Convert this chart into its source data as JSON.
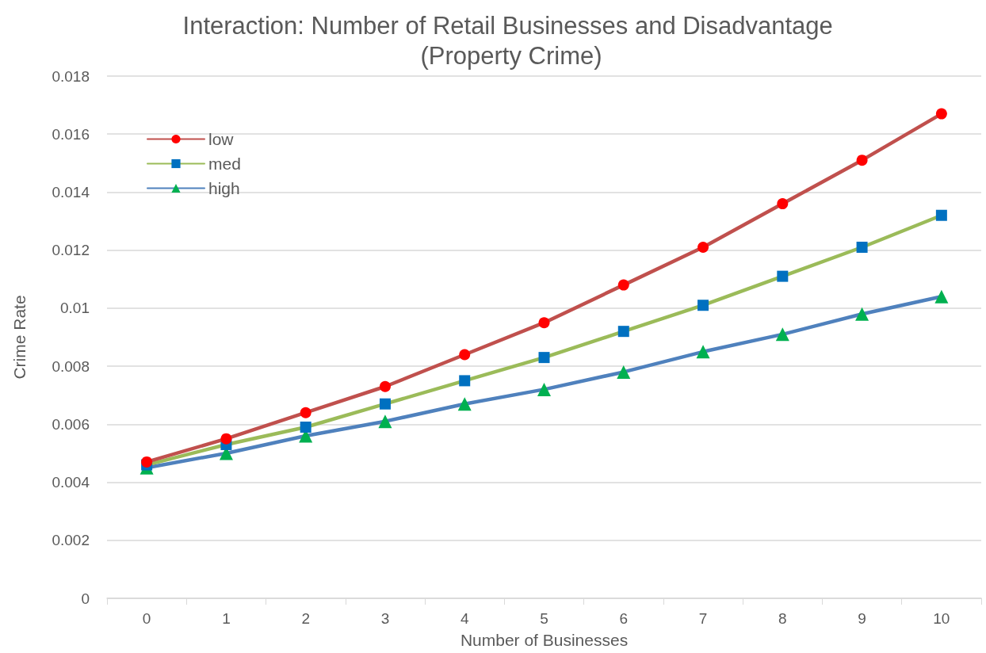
{
  "chart_data": {
    "type": "line",
    "title": "Interaction: Number of Retail Businesses and Disadvantage (Property Crime)",
    "xlabel": "Number of Businesses",
    "ylabel": "Crime Rate",
    "categories": [
      "0",
      "1",
      "2",
      "3",
      "4",
      "5",
      "6",
      "7",
      "8",
      "9",
      "10"
    ],
    "series": [
      {
        "name": "low",
        "color": "#c0504d",
        "marker": "circle",
        "colors": [
          "#ff0000",
          "#ff0000",
          "#ff0000",
          "#ff0000",
          "#ff0000",
          "#ff0000",
          "#ff0000",
          "#ff0000",
          "#ff0000",
          "#ff0000",
          "#ff0000"
        ],
        "values": [
          0.0047,
          0.0055,
          0.0064,
          0.0073,
          0.0084,
          0.0095,
          0.0108,
          0.0121,
          0.0136,
          0.0151,
          0.0167
        ]
      },
      {
        "name": "med",
        "color": "#9bbb59",
        "marker": "square",
        "colors": [
          "#0070c0",
          "#0070c0",
          "#0070c0",
          "#0070c0",
          "#0070c0",
          "#0070c0",
          "#0070c0",
          "#0070c0",
          "#0070c0",
          "#0070c0",
          "#0070c0"
        ],
        "values": [
          0.0046,
          0.0053,
          0.0059,
          0.0067,
          0.0075,
          0.0083,
          0.0092,
          0.0101,
          0.0111,
          0.0121,
          0.0132
        ]
      },
      {
        "name": "high",
        "color": "#4f81bd",
        "marker": "triangle",
        "colors": [
          "#00b050",
          "#00b050",
          "#00b050",
          "#00b050",
          "#00b050",
          "#00b050",
          "#00b050",
          "#00b050",
          "#00b050",
          "#00b050",
          "#00b050"
        ],
        "values": [
          0.0045,
          0.005,
          0.0056,
          0.0061,
          0.0067,
          0.0072,
          0.0078,
          0.0085,
          0.0091,
          0.0098,
          0.0104
        ]
      }
    ],
    "ylim": [
      0,
      0.018
    ],
    "yticks": [
      0,
      0.002,
      0.004,
      0.006,
      0.008,
      0.01,
      0.012,
      0.014,
      0.016,
      0.018
    ],
    "grid": "y",
    "legend": "top left",
    "line_style": "solid"
  }
}
